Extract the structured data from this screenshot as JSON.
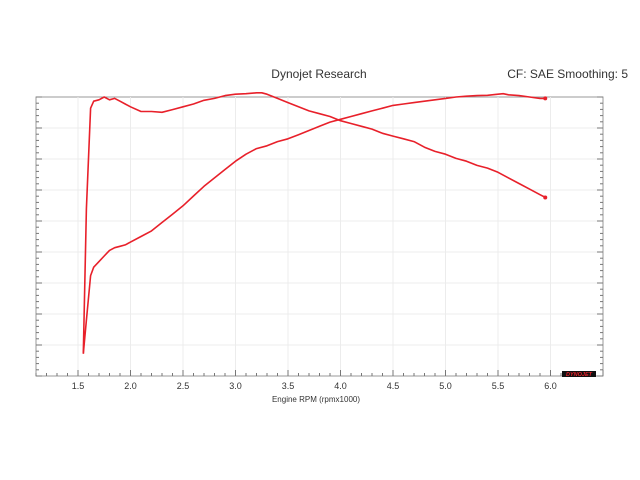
{
  "header": {
    "title": "Dynojet Research",
    "info": "CF: SAE Smoothing: 5"
  },
  "watermark": {
    "brand": "DYNOJET"
  },
  "chart_data": {
    "type": "line",
    "title": "Dynojet Research",
    "xlabel": "Engine RPM (rpmx1000)",
    "ylabel": "",
    "xlim": [
      1.1,
      6.5
    ],
    "ylim": [
      0,
      100
    ],
    "x_ticks": [
      1.5,
      2.0,
      2.5,
      3.0,
      3.5,
      4.0,
      4.5,
      5.0,
      5.5,
      6.0
    ],
    "x_tick_labels": [
      "1.5",
      "2.0",
      "2.5",
      "3.0",
      "3.5",
      "4.0",
      "4.5",
      "5.0",
      "5.5",
      "6.0"
    ],
    "grid": true,
    "legend": "none",
    "line_color": "#e8202a",
    "series": [
      {
        "x": [
          1.55,
          1.58,
          1.62,
          1.65,
          1.7,
          1.75,
          1.8,
          1.85,
          1.9,
          1.95,
          2.0,
          2.1,
          2.2,
          2.3,
          2.4,
          2.5,
          2.6,
          2.7,
          2.8,
          2.9,
          3.0,
          3.1,
          3.2,
          3.3,
          3.4,
          3.5,
          3.6,
          3.7,
          3.8,
          3.9,
          4.0,
          4.1,
          4.2,
          4.3,
          4.4,
          4.5,
          4.6,
          4.7,
          4.8,
          4.9,
          5.0,
          5.1,
          5.2,
          5.3,
          5.4,
          5.5,
          5.55,
          5.6,
          5.7,
          5.8,
          5.9,
          5.95
        ],
        "values": [
          8,
          20,
          36,
          39,
          41,
          43,
          45,
          46,
          46.5,
          47,
          48,
          50,
          52,
          55,
          58,
          61,
          64.5,
          68,
          71,
          74,
          77,
          79.5,
          81.5,
          82.5,
          84,
          85,
          86.5,
          88,
          89.5,
          91,
          92,
          93,
          94,
          95,
          96,
          97,
          97.5,
          98,
          98.5,
          99,
          99.5,
          100,
          100.3,
          100.5,
          100.6,
          101,
          101.2,
          100.8,
          100.5,
          100,
          99.5,
          99.5
        ]
      },
      {
        "x": [
          1.55,
          1.58,
          1.62,
          1.65,
          1.7,
          1.75,
          1.8,
          1.85,
          1.9,
          1.95,
          2.0,
          2.1,
          2.2,
          2.3,
          2.4,
          2.5,
          2.6,
          2.7,
          2.8,
          2.9,
          3.0,
          3.1,
          3.2,
          3.25,
          3.3,
          3.4,
          3.5,
          3.6,
          3.7,
          3.8,
          3.9,
          4.0,
          4.1,
          4.2,
          4.3,
          4.4,
          4.5,
          4.6,
          4.7,
          4.8,
          4.9,
          5.0,
          5.1,
          5.2,
          5.3,
          5.4,
          5.5,
          5.6,
          5.7,
          5.8,
          5.9,
          5.95
        ],
        "values": [
          8,
          60,
          96,
          98.5,
          99,
          100,
          99,
          99.5,
          98.5,
          97.5,
          96.5,
          94.8,
          94.8,
          94.5,
          95.5,
          96.5,
          97.5,
          98.8,
          99.5,
          100.5,
          101,
          101.2,
          101.5,
          101.5,
          101,
          99.5,
          98,
          96.5,
          95,
          94,
          93,
          91.5,
          90.5,
          89.5,
          88.5,
          87,
          86,
          85,
          84,
          82,
          80.5,
          79.5,
          78,
          77,
          75.5,
          74.5,
          73,
          71,
          69,
          67,
          65,
          64
        ]
      }
    ]
  }
}
